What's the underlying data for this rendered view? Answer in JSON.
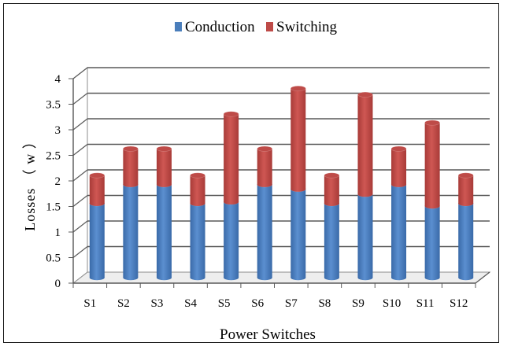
{
  "chart_data": {
    "type": "bar",
    "stacked": true,
    "three_d": true,
    "title": "",
    "xlabel": "Power Switches",
    "ylabel": "Losses （ w ）",
    "categories": [
      "S1",
      "S2",
      "S3",
      "S4",
      "S5",
      "S6",
      "S7",
      "S8",
      "S9",
      "S10",
      "S11",
      "S12"
    ],
    "series": [
      {
        "name": "Conduction",
        "color": "#4a7ebb",
        "values": [
          1.45,
          1.82,
          1.82,
          1.45,
          1.48,
          1.82,
          1.73,
          1.45,
          1.63,
          1.82,
          1.4,
          1.45
        ]
      },
      {
        "name": "Switching",
        "color": "#be4b48",
        "values": [
          0.55,
          0.7,
          0.7,
          0.55,
          1.72,
          0.7,
          1.97,
          0.55,
          1.95,
          0.7,
          1.63,
          0.55
        ]
      }
    ],
    "ylim": [
      0,
      4
    ],
    "yticks": [
      "0",
      "0.5",
      "1",
      "1.5",
      "2",
      "2.5",
      "3",
      "3.5",
      "4"
    ],
    "grid": true,
    "legend_position": "top"
  }
}
